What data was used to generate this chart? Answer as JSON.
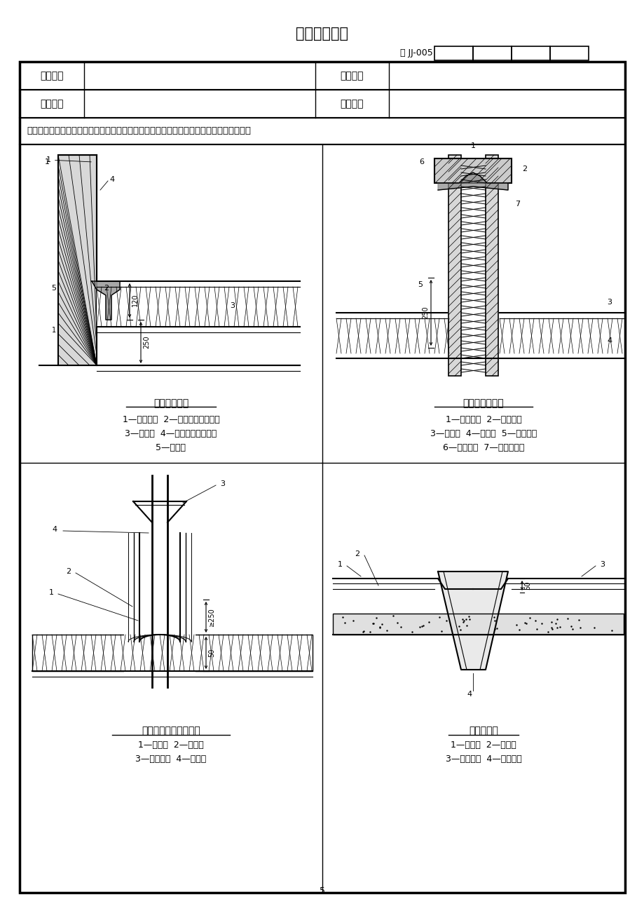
{
  "title": "技术交底记录",
  "doc_number": "鲁 JJ-005",
  "table_rows": [
    [
      "工程名称",
      "",
      "施工单位",
      ""
    ],
    [
      "交底部位",
      "",
      "工序名称",
      ""
    ]
  ],
  "summary_label": "交底提要：",
  "summary_text": "合成高分子卷材屋面防水层工程的相关材料、机具准备、质量要求及施工工艺。",
  "diagram1_title": "高低跨变形缝",
  "diagram1_legend": [
    "1—密封材料  2—金属或高分子盖板",
    "3—防水层  4—金属压条钉子固定",
    "5—水泥钉"
  ],
  "diagram2_title": "变形缝防水构造",
  "diagram2_legend": [
    "1—衬垫材料  2—卷材封盖",
    "3—防水层  4—附加层  5—沥青麻丝",
    "6—水泥砂浆  7—混凝土盖板"
  ],
  "diagram3_title": "伸出屋面管道防水构造",
  "diagram3_legend": [
    "1—防水层  2—附加层",
    "3—密封材料  4—金属箍"
  ],
  "diagram4_title": "直式水落口",
  "diagram4_legend": [
    "1—防水层  2—附加层",
    "3—密封材料  4—水落口杯"
  ],
  "bg_color": "#ffffff",
  "border_color": "#000000",
  "text_color": "#000000"
}
